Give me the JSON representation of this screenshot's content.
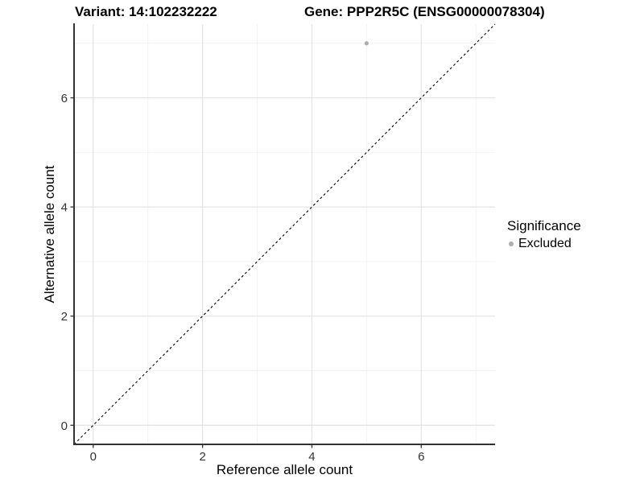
{
  "titles": {
    "variant": "Variant: 14:102232222",
    "gene": "Gene: PPP2R5C (ENSG00000078304)"
  },
  "legend": {
    "title": "Significance",
    "entries": [
      {
        "label": "Excluded",
        "color": "#adadad"
      }
    ]
  },
  "chart_data": {
    "type": "scatter",
    "title_left": "Variant: 14:102232222",
    "title_right": "Gene: PPP2R5C (ENSG00000078304)",
    "xlabel": "Reference allele count",
    "ylabel": "Alternative allele count",
    "xlim": [
      -0.35,
      7.35
    ],
    "ylim": [
      -0.35,
      7.35
    ],
    "x_ticks": [
      0,
      2,
      4,
      6
    ],
    "y_ticks": [
      0,
      2,
      4,
      6
    ],
    "x_minor_ticks": [
      1,
      3,
      5,
      7
    ],
    "y_minor_ticks": [
      1,
      3,
      5,
      7
    ],
    "grid": "major+minor",
    "legend_position": "right",
    "legend_title": "Significance",
    "reference_line": {
      "type": "identity",
      "slope": 1,
      "intercept": 0,
      "style": "dashed",
      "color": "#000000"
    },
    "series": [
      {
        "name": "Excluded",
        "color": "#adadad",
        "points": [
          {
            "x": 5,
            "y": 7
          }
        ]
      }
    ],
    "style": {
      "grid_major_color": "#e3e3e3",
      "grid_minor_color": "#f1f1f1",
      "axis_line_color": "#333333",
      "tick_label_color": "#333333",
      "tick_label_size": 15
    }
  }
}
